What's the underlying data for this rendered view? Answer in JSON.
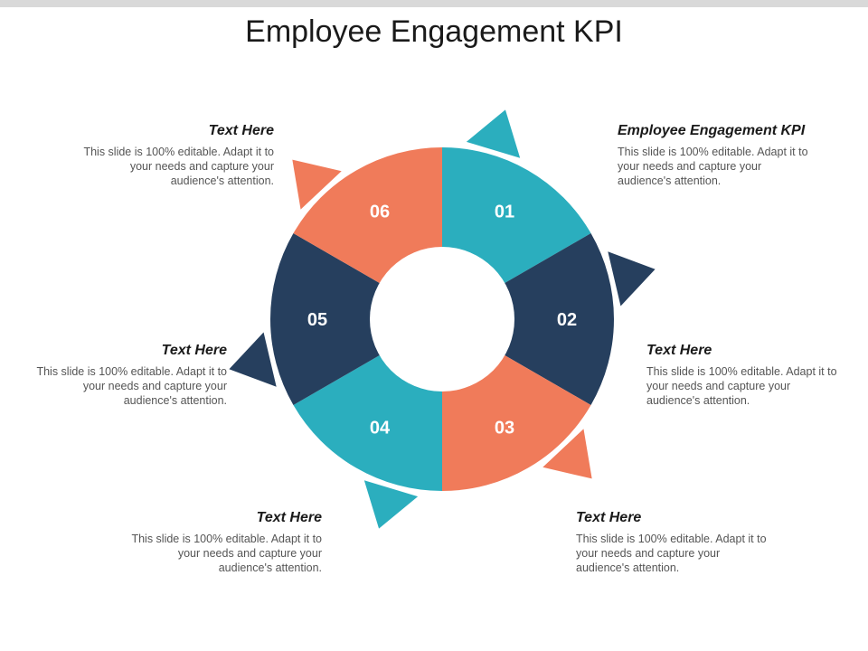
{
  "title": "Employee Engagement KPI",
  "colors": {
    "teal": "#2baebe",
    "navy": "#263f5e",
    "coral": "#f07b5a"
  },
  "segments": [
    {
      "label": "01",
      "color": "#2baebe"
    },
    {
      "label": "02",
      "color": "#263f5e"
    },
    {
      "label": "03",
      "color": "#f07b5a"
    },
    {
      "label": "04",
      "color": "#2baebe"
    },
    {
      "label": "05",
      "color": "#263f5e"
    },
    {
      "label": "06",
      "color": "#f07b5a"
    }
  ],
  "blocks": [
    {
      "heading": "Employee Engagement KPI",
      "body": "This slide is 100% editable. Adapt it to your needs and capture your audience's attention."
    },
    {
      "heading": "Text Here",
      "body": "This slide is 100% editable. Adapt it to your needs and capture your audience's attention."
    },
    {
      "heading": "Text Here",
      "body": "This slide is 100% editable. Adapt it to your needs and capture your audience's attention."
    },
    {
      "heading": "Text Here",
      "body": "This slide is 100% editable. Adapt it to your needs and capture your audience's attention."
    },
    {
      "heading": "Text Here",
      "body": "This slide is 100% editable. Adapt it to your needs and capture your audience's attention."
    },
    {
      "heading": "Text Here",
      "body": "This slide is 100% editable. Adapt it to your needs and capture your audience's attention."
    }
  ]
}
